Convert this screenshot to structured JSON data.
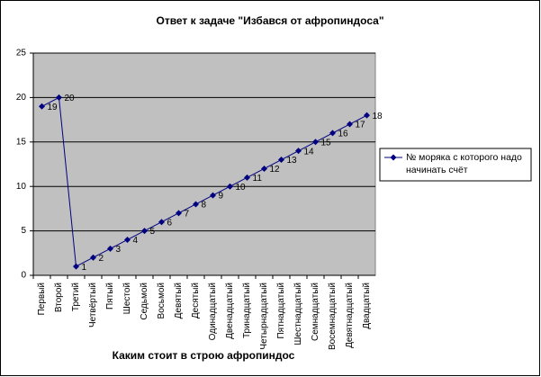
{
  "chart_data": {
    "type": "line",
    "title": "Ответ к задаче \"Избався от афропиндоса\"",
    "x_label": "Каким стоит в строю афропиндос",
    "categories": [
      "Первый",
      "Второй",
      "Третий",
      "Четвёртый",
      "Пятый",
      "Шестой",
      "Седьмой",
      "Восьмой",
      "Девятый",
      "Десятый",
      "Одинадцатый",
      "Двенадцатый",
      "Тринадцатый",
      "Четырнадцатый",
      "Пятнадцатый",
      "Шестнадцатый",
      "Семнадцатый",
      "Восемнадцатый",
      "Девятнадцатый",
      "Двадцатый"
    ],
    "series": [
      {
        "name": "№ моряка с которого надо начинать счёт",
        "color": "#000080",
        "values": [
          19,
          20,
          1,
          2,
          3,
          4,
          5,
          6,
          7,
          8,
          9,
          10,
          11,
          12,
          13,
          14,
          15,
          16,
          17,
          18
        ]
      }
    ],
    "ylim": [
      0,
      25
    ],
    "yticks": [
      0,
      5,
      10,
      15,
      20,
      25
    ],
    "grid": true,
    "legend": "right",
    "plot_background": "#c0c0c0"
  }
}
